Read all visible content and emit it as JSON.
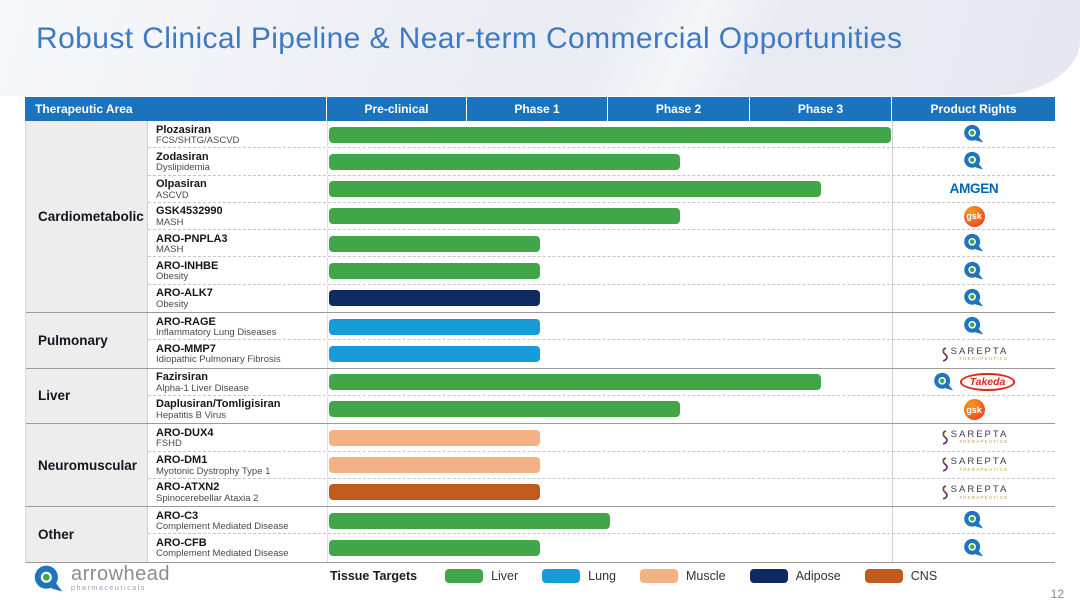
{
  "title": "Robust Clinical Pipeline & Near-term Commercial Opportunities",
  "page_number": "12",
  "table": {
    "headers": [
      "Therapeutic Area",
      "Pre-clinical",
      "Phase 1",
      "Phase 2",
      "Phase 3",
      "Product Rights"
    ]
  },
  "chart_data": {
    "type": "bar",
    "orientation": "horizontal",
    "x_axis": [
      "Pre-clinical",
      "Phase 1",
      "Phase 2",
      "Phase 3"
    ],
    "value_note": "progress = phases reached on a 0-4 scale; 0.5 means mid-phase",
    "groups": [
      {
        "area": "Cardiometabolic",
        "rows": [
          {
            "name": "Plozasiran",
            "indication": "FCS/SHTG/ASCVD",
            "tissue": "liver",
            "progress": 4.0,
            "rights": [
              "arrowhead"
            ]
          },
          {
            "name": "Zodasiran",
            "indication": "Dyslipidemia",
            "tissue": "liver",
            "progress": 2.5,
            "rights": [
              "arrowhead"
            ]
          },
          {
            "name": "Olpasiran",
            "indication": "ASCVD",
            "tissue": "liver",
            "progress": 3.5,
            "rights": [
              "amgen"
            ]
          },
          {
            "name": "GSK4532990",
            "indication": "MASH",
            "tissue": "liver",
            "progress": 2.5,
            "rights": [
              "gsk"
            ]
          },
          {
            "name": "ARO-PNPLA3",
            "indication": "MASH",
            "tissue": "liver",
            "progress": 1.5,
            "rights": [
              "arrowhead"
            ]
          },
          {
            "name": "ARO-INHBE",
            "indication": "Obesity",
            "tissue": "liver",
            "progress": 1.5,
            "rights": [
              "arrowhead"
            ]
          },
          {
            "name": "ARO-ALK7",
            "indication": "Obesity",
            "tissue": "adipose",
            "progress": 1.5,
            "rights": [
              "arrowhead"
            ]
          }
        ]
      },
      {
        "area": "Pulmonary",
        "rows": [
          {
            "name": "ARO-RAGE",
            "indication": "Inflammatory Lung Diseases",
            "tissue": "lung",
            "progress": 1.5,
            "rights": [
              "arrowhead"
            ]
          },
          {
            "name": "ARO-MMP7",
            "indication": "Idiopathic Pulmonary Fibrosis",
            "tissue": "lung",
            "progress": 1.5,
            "rights": [
              "sarepta"
            ]
          }
        ]
      },
      {
        "area": "Liver",
        "rows": [
          {
            "name": "Fazirsiran",
            "indication": "Alpha-1 Liver Disease",
            "tissue": "liver",
            "progress": 3.5,
            "rights": [
              "arrowhead",
              "takeda"
            ]
          },
          {
            "name": "Daplusiran/Tomligisiran",
            "indication": "Hepatitis B Virus",
            "tissue": "liver",
            "progress": 2.5,
            "rights": [
              "gsk"
            ]
          }
        ]
      },
      {
        "area": "Neuromuscular",
        "rows": [
          {
            "name": "ARO-DUX4",
            "indication": "FSHD",
            "tissue": "muscle",
            "progress": 1.5,
            "rights": [
              "sarepta"
            ]
          },
          {
            "name": "ARO-DM1",
            "indication": "Myotonic Dystrophy Type 1",
            "tissue": "muscle",
            "progress": 1.5,
            "rights": [
              "sarepta"
            ]
          },
          {
            "name": "ARO-ATXN2",
            "indication": "Spinocerebellar Ataxia 2",
            "tissue": "cns",
            "progress": 1.5,
            "rights": [
              "sarepta"
            ]
          }
        ]
      },
      {
        "area": "Other",
        "rows": [
          {
            "name": "ARO-C3",
            "indication": "Complement Mediated Disease",
            "tissue": "liver",
            "progress": 2.0,
            "rights": [
              "arrowhead"
            ]
          },
          {
            "name": "ARO-CFB",
            "indication": "Complement Mediated Disease",
            "tissue": "liver",
            "progress": 1.5,
            "rights": [
              "arrowhead"
            ]
          }
        ]
      }
    ]
  },
  "legend": {
    "label": "Tissue Targets",
    "items": [
      {
        "label": "Liver",
        "tissue": "liver"
      },
      {
        "label": "Lung",
        "tissue": "lung"
      },
      {
        "label": "Muscle",
        "tissue": "muscle"
      },
      {
        "label": "Adipose",
        "tissue": "adipose"
      },
      {
        "label": "CNS",
        "tissue": "cns"
      }
    ]
  },
  "logos": {
    "amgen": "AMGEN",
    "gsk": "gsk",
    "takeda": "Takeda",
    "sarepta": "SAREPTA",
    "sarepta_sub": "THERAPEUTICS"
  },
  "footer": {
    "brand": "arrowhead",
    "brand_sub": "pharmaceuticals"
  },
  "colors": {
    "header_bg": "#1B74BB",
    "title": "#3D7AC5",
    "tissues": {
      "liver": "#41A648",
      "lung": "#189CD8",
      "muscle": "#F2B285",
      "adipose": "#0E2A63",
      "cns": "#C05A1D"
    }
  }
}
